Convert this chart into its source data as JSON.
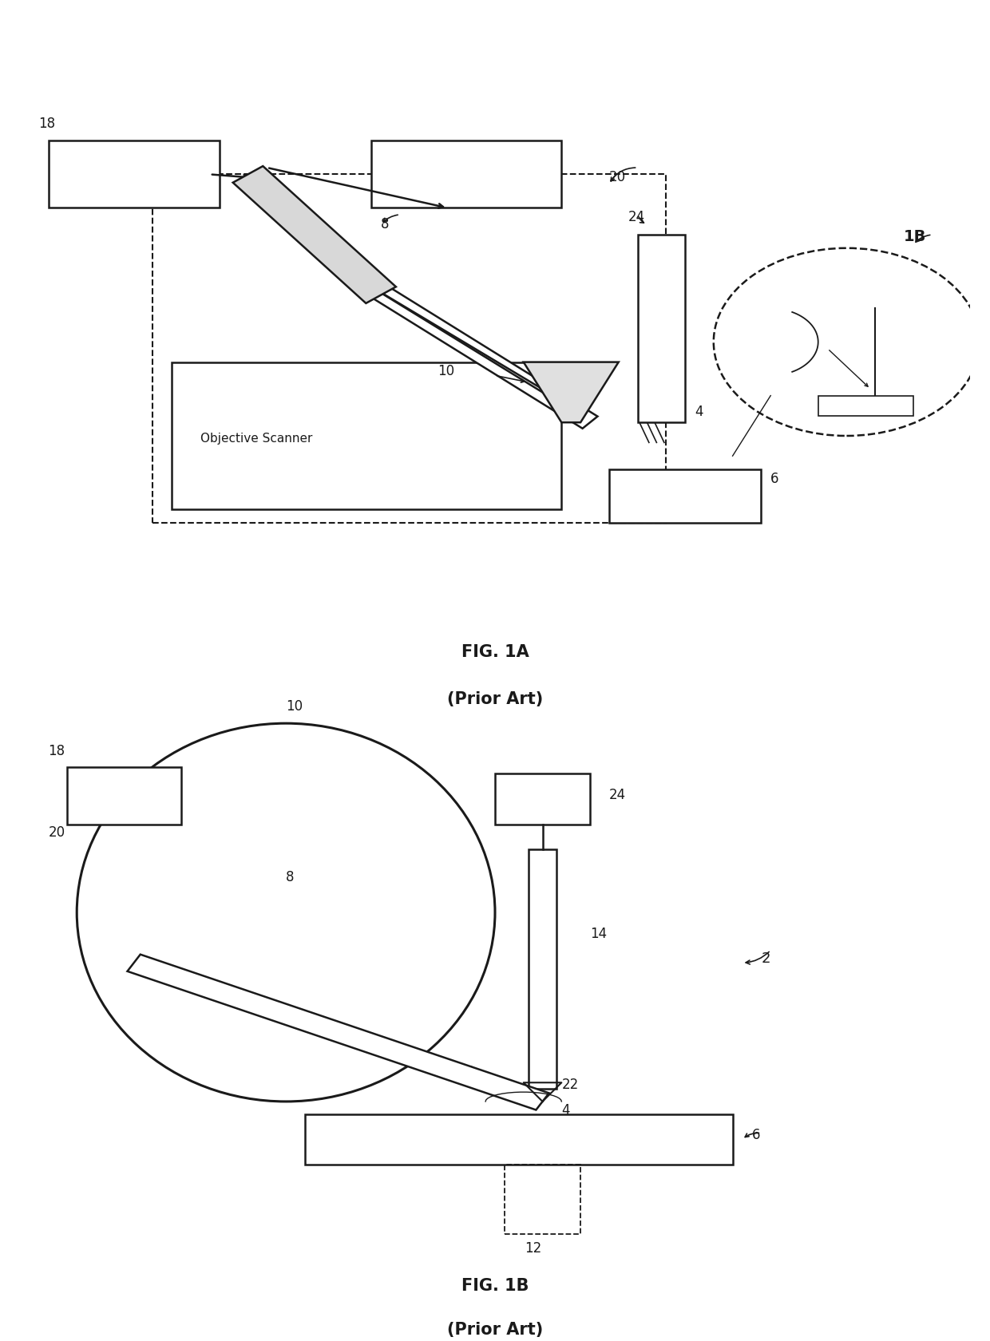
{
  "fig_title_1": "FIG. 1A",
  "fig_subtitle_1": "(Prior Art)",
  "fig_title_2": "FIG. 1B",
  "fig_subtitle_2": "(Prior Art)",
  "background_color": "#ffffff",
  "line_color": "#1a1a1a",
  "label_fontsize": 12,
  "title_fontsize": 15
}
